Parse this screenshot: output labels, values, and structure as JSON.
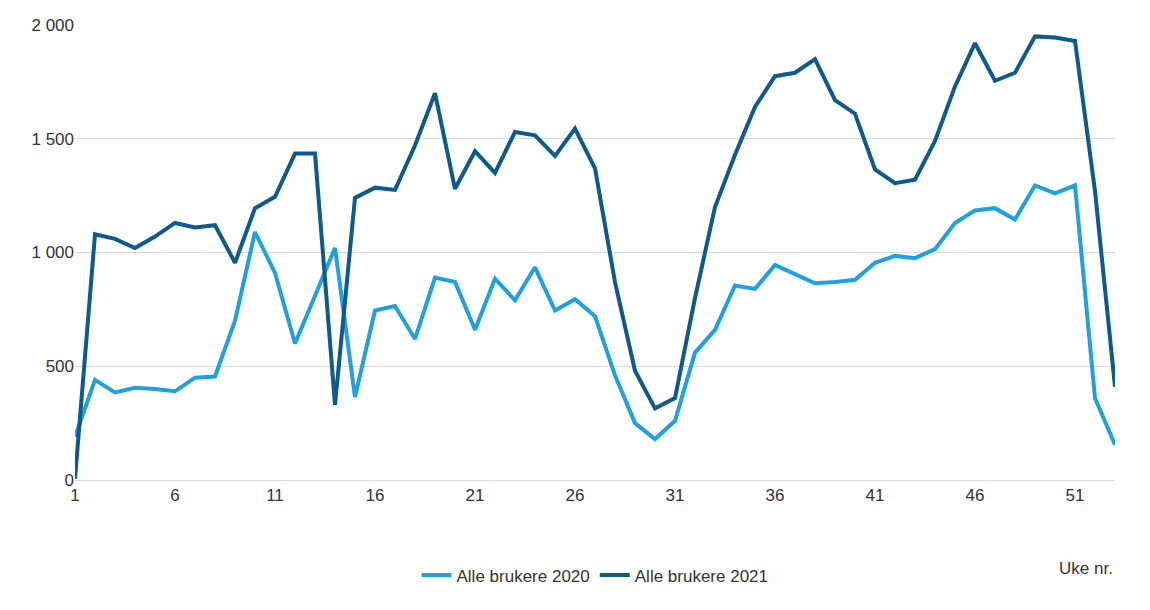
{
  "chart_data": {
    "type": "line",
    "x_label": "Uke nr.",
    "x": [
      1,
      2,
      3,
      4,
      5,
      6,
      7,
      8,
      9,
      10,
      11,
      12,
      13,
      14,
      15,
      16,
      17,
      18,
      19,
      20,
      21,
      22,
      23,
      24,
      25,
      26,
      27,
      28,
      29,
      30,
      31,
      32,
      33,
      34,
      35,
      36,
      37,
      38,
      39,
      40,
      41,
      42,
      43,
      44,
      45,
      46,
      47,
      48,
      49,
      50,
      51,
      52,
      53
    ],
    "series": [
      {
        "name": "Alle brukere 2020",
        "color": "#1fa0e0",
        "values": [
          190,
          440,
          385,
          405,
          400,
          390,
          450,
          455,
          700,
          1090,
          910,
          600,
          810,
          1020,
          365,
          745,
          765,
          620,
          890,
          870,
          660,
          885,
          790,
          935,
          745,
          795,
          720,
          460,
          250,
          180,
          260,
          560,
          660,
          855,
          840,
          945,
          905,
          865,
          870,
          880,
          955,
          985,
          975,
          1015,
          1130,
          1185,
          1195,
          1145,
          1295,
          1260,
          1295,
          360,
          155
        ]
      },
      {
        "name": "Alle brukere 2021",
        "color": "#0d5a8c",
        "values": [
          5,
          1080,
          1060,
          1020,
          1070,
          1130,
          1110,
          1120,
          955,
          1195,
          1245,
          1435,
          1435,
          330,
          1240,
          1285,
          1275,
          1470,
          1700,
          1280,
          1445,
          1350,
          1530,
          1515,
          1425,
          1545,
          1370,
          870,
          480,
          315,
          360,
          800,
          1200,
          1430,
          1640,
          1775,
          1790,
          1850,
          1670,
          1610,
          1365,
          1305,
          1320,
          1490,
          1730,
          1920,
          1755,
          1790,
          1950,
          1945,
          1930,
          1270,
          410
        ]
      }
    ],
    "xlim": [
      1,
      53
    ],
    "xticks": [
      1,
      6,
      11,
      16,
      21,
      26,
      31,
      36,
      41,
      46,
      51
    ],
    "ylim": [
      0,
      2000
    ],
    "yticks": [
      0,
      500,
      {
        "value": 1000,
        "label": "1 000"
      },
      {
        "value": 1500,
        "label": "1 500"
      },
      {
        "value": 2000,
        "label": "2 000"
      }
    ],
    "grid": true,
    "legend": "bottom"
  }
}
